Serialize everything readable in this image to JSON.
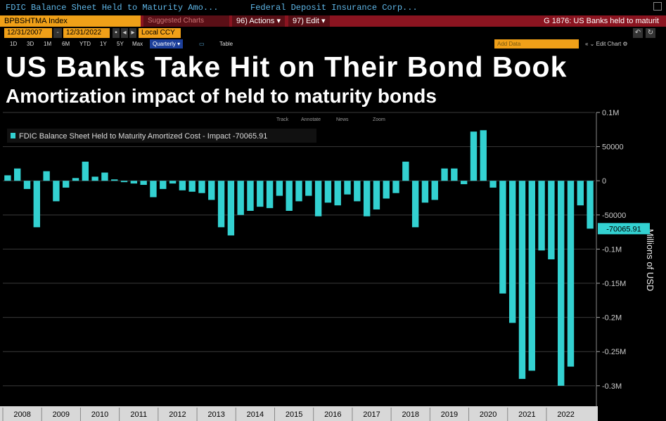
{
  "topbar": {
    "security": "FDIC Balance Sheet Held to Maturity Amo...",
    "source": "Federal Deposit Insurance Corp..."
  },
  "cmdbar": {
    "ticker": "BPBSHTMA Index",
    "suggested": "Suggested Charts",
    "actions": "96) Actions ▾",
    "edit": "97) Edit ▾",
    "chart_id": "G 1876: US Banks held to maturit"
  },
  "datebar": {
    "start": "12/31/2007",
    "end": "12/31/2022",
    "currency": "Local CCY"
  },
  "rangebar": {
    "ranges": [
      "1D",
      "3D",
      "1M",
      "6M",
      "YTD",
      "1Y",
      "5Y",
      "Max"
    ],
    "period": "Quarterly ▾",
    "table": "Table",
    "add_data": "Add Data",
    "edit_chart": "Edit Chart"
  },
  "headline": {
    "title": "US Banks Take Hit on Their Bond Book",
    "subtitle": "Amortization impact of held to maturity bonds"
  },
  "chart_tools": [
    "Track",
    "Annotate",
    "News",
    "Zoom"
  ],
  "legend": "FDIC Balance Sheet Held to Maturity Amortized Cost - Impact -70065.91",
  "last_value": "-70065.91",
  "colors": {
    "bar": "#33d1d1",
    "accent": "#f0a018"
  },
  "chart_data": {
    "type": "bar",
    "ylabel": "Millions of USD",
    "ylim": [
      -330000,
      100000
    ],
    "ytick_values": [
      100000,
      50000,
      0,
      -50000,
      -100000,
      -150000,
      -200000,
      -250000,
      -300000
    ],
    "ytick_labels": [
      "0.1M",
      "50000",
      "0",
      "-50000",
      "-0.1M",
      "-0.15M",
      "-0.2M",
      "-0.25M",
      "-0.3M"
    ],
    "x_labels": [
      "2008",
      "2009",
      "2010",
      "2011",
      "2012",
      "2013",
      "2014",
      "2015",
      "2016",
      "2017",
      "2018",
      "2019",
      "2020",
      "2021",
      "2022"
    ],
    "values": [
      8000,
      18000,
      -12000,
      -68000,
      14000,
      -30000,
      -10000,
      4000,
      28000,
      6000,
      12000,
      2000,
      -2000,
      -4000,
      -6000,
      -24000,
      -12000,
      -4000,
      -14000,
      -16000,
      -18000,
      -28000,
      -68000,
      -80000,
      -50000,
      -44000,
      -38000,
      -40000,
      -22000,
      -44000,
      -30000,
      -22000,
      -52000,
      -32000,
      -36000,
      -20000,
      -30000,
      -52000,
      -42000,
      -26000,
      -18000,
      28000,
      -68000,
      -32000,
      -28000,
      18000,
      18000,
      -5000,
      72000,
      74000,
      -10000,
      -165000,
      -208000,
      -290000,
      -278000,
      -102000,
      -115000,
      -300000,
      -272000,
      -36000,
      -70065.91
    ]
  }
}
